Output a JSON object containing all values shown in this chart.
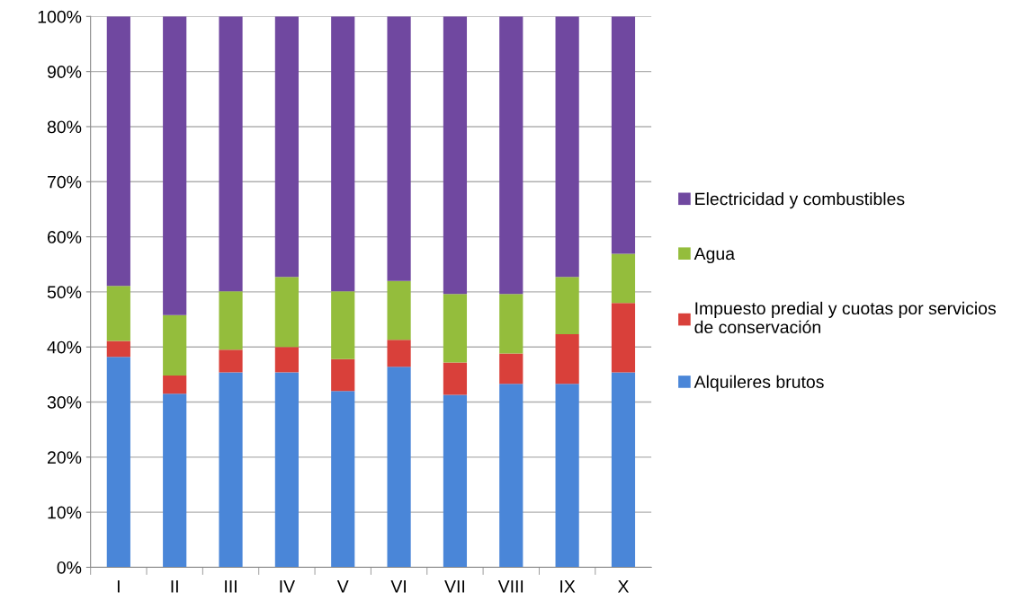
{
  "chart_data": {
    "type": "bar",
    "stacked": true,
    "categories": [
      "I",
      "II",
      "III",
      "IV",
      "V",
      "VI",
      "VII",
      "VIII",
      "IX",
      "X"
    ],
    "series": [
      {
        "name": "Alquileres brutos",
        "color": "#4a86d8",
        "values": [
          38.2,
          31.5,
          35.4,
          35.4,
          32.0,
          36.4,
          31.3,
          33.3,
          33.3,
          35.4
        ]
      },
      {
        "name": "Impuesto predial y cuotas por servicios de conservación",
        "color": "#d9403a",
        "values": [
          2.9,
          3.3,
          4.1,
          4.6,
          5.8,
          4.9,
          5.9,
          5.5,
          9.0,
          12.6
        ]
      },
      {
        "name": "Agua",
        "color": "#94bd3c",
        "values": [
          10.0,
          11.0,
          10.6,
          12.7,
          12.3,
          10.7,
          12.4,
          10.8,
          10.4,
          8.9
        ]
      },
      {
        "name": "Electricidad y combustibles",
        "color": "#7048a0",
        "values": [
          48.9,
          54.2,
          49.9,
          47.3,
          49.9,
          48.0,
          50.4,
          50.4,
          47.3,
          43.1
        ]
      }
    ],
    "ylim": [
      0,
      100
    ],
    "yticks": [
      {
        "value": 0,
        "label": "0%"
      },
      {
        "value": 10,
        "label": "10%"
      },
      {
        "value": 20,
        "label": "20%"
      },
      {
        "value": 30,
        "label": "30%"
      },
      {
        "value": 40,
        "label": "40%"
      },
      {
        "value": 50,
        "label": "50%"
      },
      {
        "value": 60,
        "label": "60%"
      },
      {
        "value": 70,
        "label": "70%"
      },
      {
        "value": 80,
        "label": "80%"
      },
      {
        "value": 90,
        "label": "90%"
      },
      {
        "value": 100,
        "label": "100%"
      }
    ],
    "grid": "y",
    "legend": "right"
  }
}
